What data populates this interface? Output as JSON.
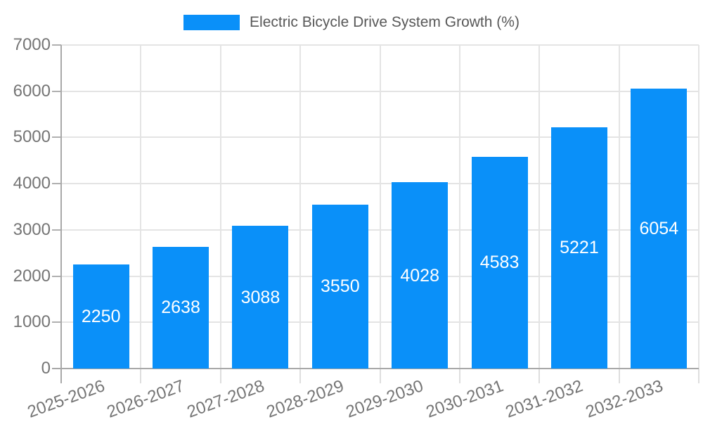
{
  "chart_data": {
    "type": "bar",
    "title": "Electric Bicycle Drive System Growth (%)",
    "legend_entries": [
      "Electric Bicycle Drive System Growth (%)"
    ],
    "legend_position": "top-center",
    "categories": [
      "2025-2026",
      "2026-2027",
      "2027-2028",
      "2028-2029",
      "2029-2030",
      "2030-2031",
      "2031-2032",
      "2032-2033"
    ],
    "values": [
      2250,
      2638,
      3088,
      3550,
      4028,
      4583,
      5221,
      6054
    ],
    "xlabel": "",
    "ylabel": "",
    "ylim": [
      0,
      7000
    ],
    "ytick_interval": 1000,
    "yticks": [
      0,
      1000,
      2000,
      3000,
      4000,
      5000,
      6000,
      7000
    ],
    "grid": "horizontal and vertical light gridlines",
    "bar_labels_shown": true,
    "xtick_rotation_deg": -20,
    "colors": {
      "bar": "#0a90f9",
      "bar_label_text": "#ffffff",
      "tick_label_text": "#757575",
      "legend_text": "#585858",
      "axis_line": "#a8a8a8",
      "gridline": "#e4e4e4",
      "tick_mark": "#b0b0b0",
      "minor_tick_mark": "#dedede",
      "background": "#ffffff"
    }
  }
}
